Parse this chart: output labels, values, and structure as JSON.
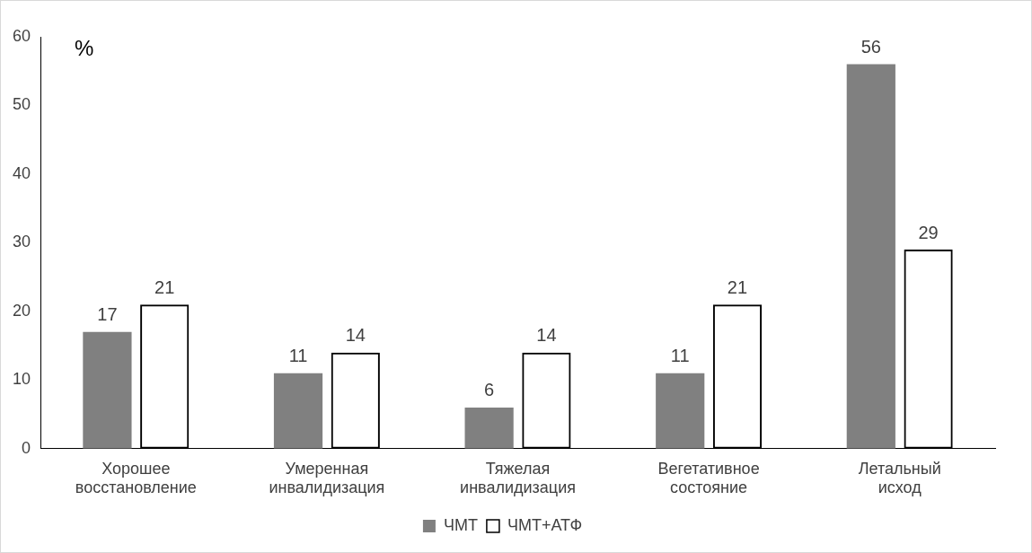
{
  "chart_data": {
    "type": "bar",
    "ylabel": "%",
    "categories": [
      "Хорошее восстановление",
      "Умеренная инвалидизация",
      "Тяжелая инвалидизация",
      "Вегетативное состояние",
      "Летальный исход"
    ],
    "series": [
      {
        "name": "ЧМТ",
        "color": "#808080",
        "values": [
          17,
          11,
          6,
          11,
          56
        ]
      },
      {
        "name": "ЧМТ+АТФ",
        "color": "#000000",
        "values": [
          21,
          14,
          14,
          21,
          29
        ]
      }
    ],
    "ylim": [
      0,
      60
    ],
    "yticks": [
      0,
      10,
      20,
      30,
      40,
      50,
      60
    ],
    "grid": false,
    "legend": "bottom",
    "data_labels": true
  }
}
